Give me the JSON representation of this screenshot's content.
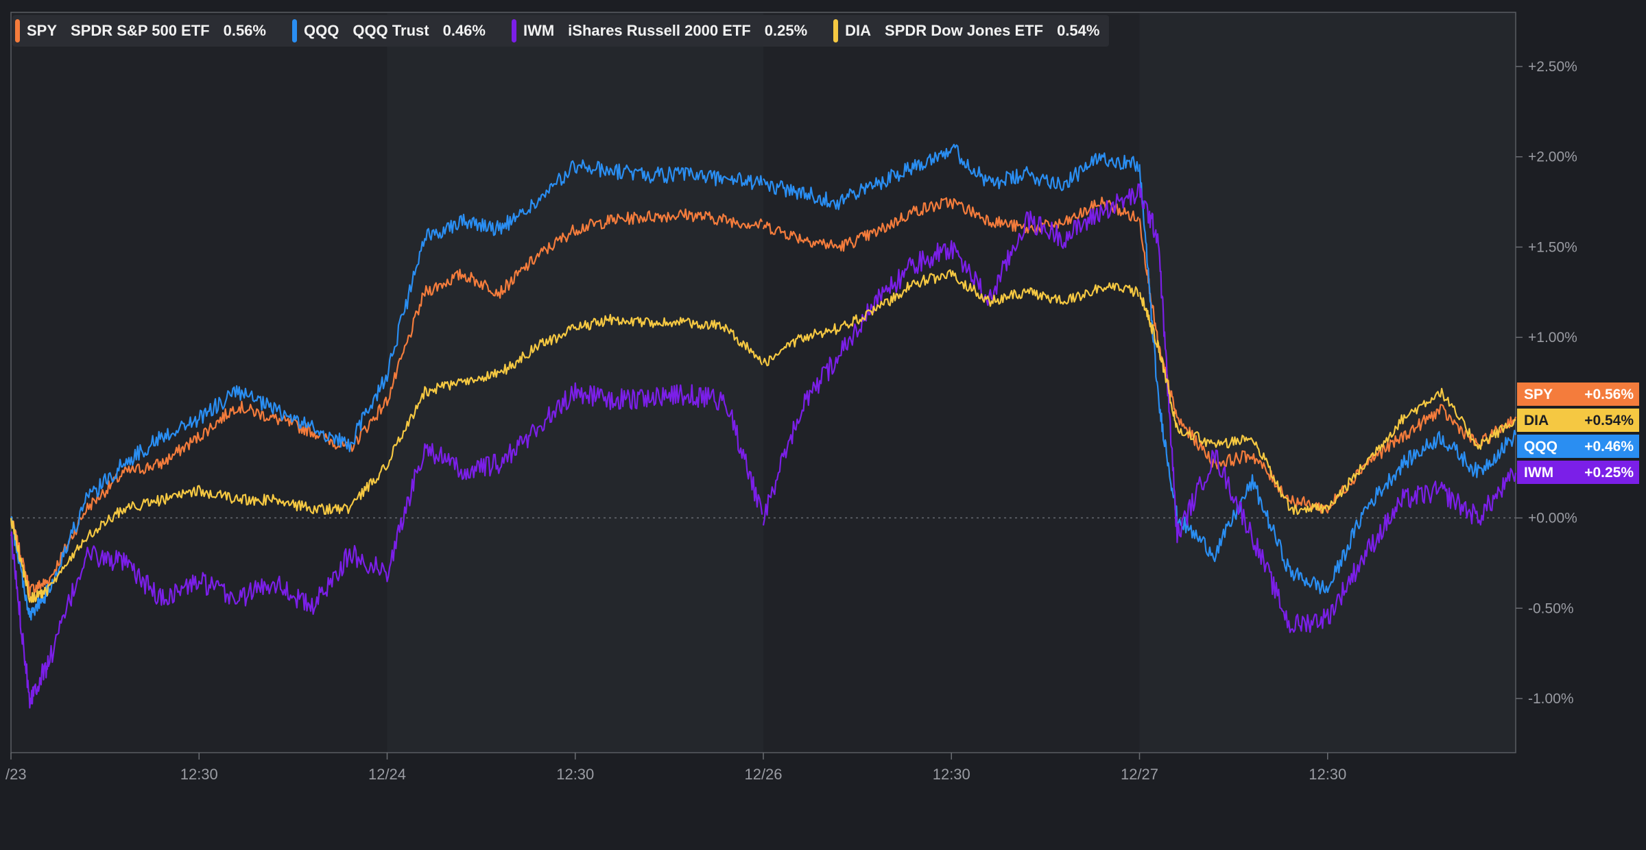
{
  "chart_data": {
    "type": "line",
    "ylim": [
      -1.3,
      2.8
    ],
    "y_ticks": [
      {
        "value": 2.5,
        "label": "+2.50%"
      },
      {
        "value": 2.0,
        "label": "+2.00%"
      },
      {
        "value": 1.5,
        "label": "+1.50%"
      },
      {
        "value": 1.0,
        "label": "+1.00%"
      },
      {
        "value": 0.0,
        "label": "+0.00%"
      },
      {
        "value": -0.5,
        "label": "-0.50%"
      },
      {
        "value": -1.0,
        "label": "-1.00%"
      }
    ],
    "x_ticks": [
      {
        "t": 0.0,
        "label": "/23"
      },
      {
        "t": 0.5,
        "label": "12:30"
      },
      {
        "t": 1.0,
        "label": "12/24"
      },
      {
        "t": 1.5,
        "label": "12:30"
      },
      {
        "t": 2.0,
        "label": "12/26"
      },
      {
        "t": 2.5,
        "label": "12:30"
      },
      {
        "t": 3.0,
        "label": "12/27"
      },
      {
        "t": 3.5,
        "label": "12:30"
      }
    ],
    "zero_line": 0,
    "grid": false,
    "legend_position": "top-left",
    "series": [
      {
        "ticker": "SPY",
        "name": "SPDR S&P 500 ETF",
        "change": "0.56%",
        "tag": "+0.56%",
        "color": "#f47c3c",
        "x": [
          0,
          0.05,
          0.1,
          0.2,
          0.3,
          0.4,
          0.5,
          0.6,
          0.7,
          0.8,
          0.9,
          1.0,
          1.1,
          1.2,
          1.3,
          1.4,
          1.5,
          1.6,
          1.7,
          1.8,
          1.9,
          2.0,
          2.1,
          2.2,
          2.3,
          2.4,
          2.5,
          2.6,
          2.7,
          2.8,
          2.9,
          3.0,
          3.05,
          3.1,
          3.2,
          3.3,
          3.4,
          3.5,
          3.6,
          3.7,
          3.8,
          3.9,
          4.0
        ],
        "y": [
          0.0,
          -0.4,
          -0.35,
          0.05,
          0.25,
          0.3,
          0.45,
          0.62,
          0.55,
          0.48,
          0.38,
          0.65,
          1.25,
          1.35,
          1.25,
          1.45,
          1.6,
          1.65,
          1.67,
          1.68,
          1.65,
          1.62,
          1.55,
          1.5,
          1.58,
          1.7,
          1.75,
          1.65,
          1.6,
          1.63,
          1.75,
          1.65,
          0.95,
          0.55,
          0.3,
          0.35,
          0.1,
          0.05,
          0.3,
          0.45,
          0.6,
          0.4,
          0.56
        ]
      },
      {
        "ticker": "QQQ",
        "name": "QQQ Trust",
        "change": "0.46%",
        "tag": "+0.46%",
        "color": "#2a8ef2",
        "x": [
          0,
          0.05,
          0.1,
          0.2,
          0.3,
          0.4,
          0.5,
          0.6,
          0.7,
          0.8,
          0.9,
          1.0,
          1.1,
          1.2,
          1.3,
          1.4,
          1.5,
          1.6,
          1.7,
          1.8,
          1.9,
          2.0,
          2.1,
          2.2,
          2.3,
          2.4,
          2.5,
          2.6,
          2.7,
          2.8,
          2.9,
          3.0,
          3.05,
          3.1,
          3.2,
          3.3,
          3.4,
          3.5,
          3.6,
          3.7,
          3.8,
          3.9,
          4.0
        ],
        "y": [
          0.0,
          -0.55,
          -0.4,
          0.1,
          0.3,
          0.45,
          0.55,
          0.7,
          0.6,
          0.5,
          0.4,
          0.8,
          1.55,
          1.65,
          1.6,
          1.75,
          1.95,
          1.92,
          1.9,
          1.9,
          1.88,
          1.85,
          1.8,
          1.75,
          1.85,
          1.95,
          2.05,
          1.85,
          1.9,
          1.85,
          2.0,
          1.95,
          0.65,
          0.0,
          -0.2,
          0.2,
          -0.3,
          -0.4,
          0.05,
          0.3,
          0.45,
          0.25,
          0.46
        ]
      },
      {
        "ticker": "IWM",
        "name": "iShares Russell 2000 ETF",
        "change": "0.25%",
        "tag": "+0.25%",
        "color": "#7b1fe8",
        "x": [
          0,
          0.05,
          0.1,
          0.2,
          0.3,
          0.4,
          0.5,
          0.6,
          0.7,
          0.8,
          0.9,
          1.0,
          1.1,
          1.2,
          1.3,
          1.4,
          1.5,
          1.6,
          1.7,
          1.8,
          1.9,
          2.0,
          2.1,
          2.2,
          2.3,
          2.4,
          2.5,
          2.6,
          2.7,
          2.8,
          2.9,
          3.0,
          3.05,
          3.1,
          3.2,
          3.3,
          3.4,
          3.5,
          3.6,
          3.7,
          3.8,
          3.9,
          4.0
        ],
        "y": [
          -0.1,
          -1.0,
          -0.8,
          -0.2,
          -0.25,
          -0.45,
          -0.35,
          -0.45,
          -0.35,
          -0.5,
          -0.2,
          -0.3,
          0.4,
          0.25,
          0.3,
          0.5,
          0.7,
          0.65,
          0.67,
          0.68,
          0.65,
          0.0,
          0.6,
          0.9,
          1.2,
          1.4,
          1.5,
          1.2,
          1.65,
          1.55,
          1.7,
          1.8,
          1.55,
          -0.1,
          0.35,
          -0.1,
          -0.6,
          -0.55,
          -0.2,
          0.1,
          0.15,
          0.0,
          0.25
        ]
      },
      {
        "ticker": "DIA",
        "name": "SPDR Dow Jones ETF",
        "change": "0.54%",
        "tag": "+0.54%",
        "color": "#f5c842",
        "x": [
          0,
          0.05,
          0.1,
          0.2,
          0.3,
          0.4,
          0.5,
          0.6,
          0.7,
          0.8,
          0.9,
          1.0,
          1.1,
          1.2,
          1.3,
          1.4,
          1.5,
          1.6,
          1.7,
          1.8,
          1.9,
          2.0,
          2.1,
          2.2,
          2.3,
          2.4,
          2.5,
          2.6,
          2.7,
          2.8,
          2.9,
          3.0,
          3.05,
          3.1,
          3.2,
          3.3,
          3.4,
          3.5,
          3.6,
          3.7,
          3.8,
          3.9,
          4.0
        ],
        "y": [
          0.0,
          -0.45,
          -0.4,
          -0.1,
          0.05,
          0.1,
          0.15,
          0.1,
          0.1,
          0.05,
          0.05,
          0.3,
          0.7,
          0.75,
          0.8,
          0.95,
          1.05,
          1.1,
          1.08,
          1.08,
          1.06,
          0.85,
          1.0,
          1.05,
          1.15,
          1.3,
          1.35,
          1.2,
          1.25,
          1.2,
          1.28,
          1.25,
          0.95,
          0.5,
          0.4,
          0.45,
          0.05,
          0.05,
          0.3,
          0.55,
          0.7,
          0.4,
          0.54
        ]
      }
    ]
  }
}
